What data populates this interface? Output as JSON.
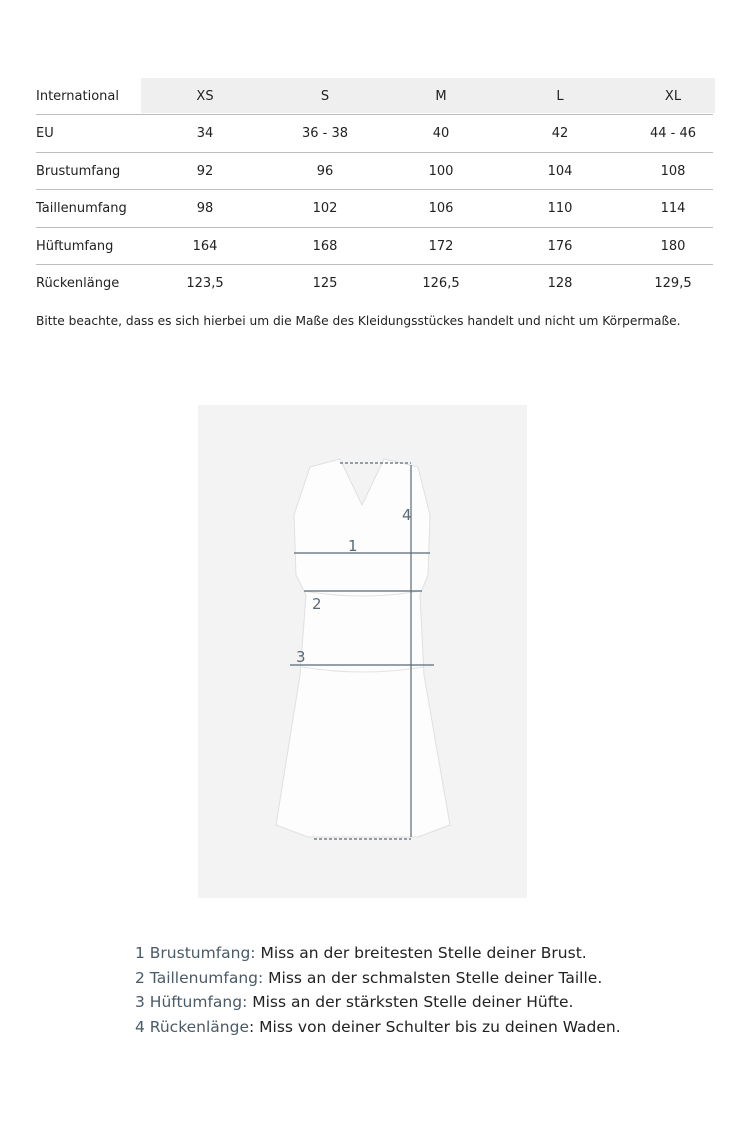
{
  "table": {
    "header": {
      "label": "International",
      "sizes": [
        "XS",
        "S",
        "M",
        "L",
        "XL"
      ]
    },
    "rows": [
      {
        "label": "EU",
        "values": [
          "34",
          "36 - 38",
          "40",
          "42",
          "44 - 46"
        ]
      },
      {
        "label": "Brustumfang",
        "values": [
          "92",
          "96",
          "100",
          "104",
          "108"
        ]
      },
      {
        "label": "Taillenumfang",
        "values": [
          "98",
          "102",
          "106",
          "110",
          "114"
        ]
      },
      {
        "label": "Hüftumfang",
        "values": [
          "164",
          "168",
          "172",
          "176",
          "180"
        ]
      },
      {
        "label": "Rückenlänge",
        "values": [
          "123,5",
          "125",
          "126,5",
          "128",
          "129,5"
        ]
      }
    ]
  },
  "note": "Bitte beachte, dass es sich hierbei um die Maße des Kleidungsstückes handelt und nicht um Körpermaße.",
  "diagram": {
    "markers": [
      "1",
      "2",
      "3",
      "4"
    ],
    "arrow_color": "#5a6a75"
  },
  "legend": [
    {
      "key": "1 Brustumfang:",
      "text": " Miss an der breitesten Stelle deiner Brust."
    },
    {
      "key": "2 Taillenumfang:",
      "text": " Miss an der schmalsten Stelle deiner Taille."
    },
    {
      "key": "3 Hüftumfang:",
      "text": " Miss an der stärksten Stelle deiner Hüfte."
    },
    {
      "key": "4 Rückenlänge",
      "text": ": Miss von deiner Schulter bis zu deinen Waden."
    }
  ],
  "colors": {
    "legend_key": "#4a5a66",
    "header_bg": "#efefef"
  }
}
